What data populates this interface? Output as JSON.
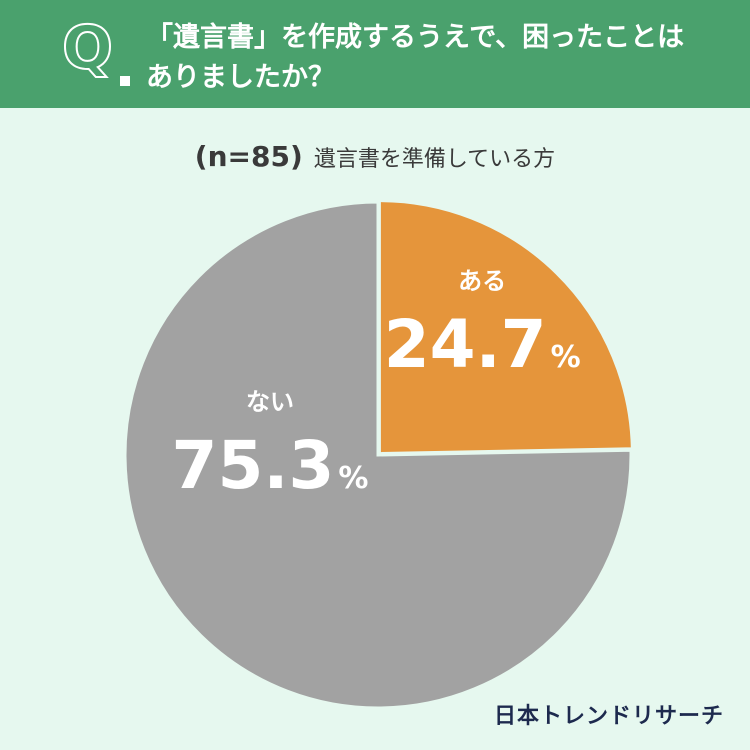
{
  "header": {
    "line1": "「遺言書」を作成するうえで、困ったことは",
    "line2": "ありましたか？",
    "q_letter": "Q"
  },
  "subtitle": {
    "n": "(n=85)",
    "desc": "遺言書を準備している方"
  },
  "chart_data": {
    "type": "pie",
    "title": "",
    "slices": [
      {
        "label": "ある",
        "value": 24.7,
        "display": "24.7",
        "unit": "%",
        "color": "#e5953b"
      },
      {
        "label": "ない",
        "value": 75.3,
        "display": "75.3",
        "unit": "%",
        "color": "#a2a2a2"
      }
    ],
    "start": "12 o'clock",
    "direction": "clockwise"
  },
  "footer": {
    "logo": "日本トレンドリサーチ"
  },
  "colors": {
    "header_bg": "#4aa16d",
    "page_bg": "#e6f8ef",
    "slice_border": "#e6f8ef"
  }
}
